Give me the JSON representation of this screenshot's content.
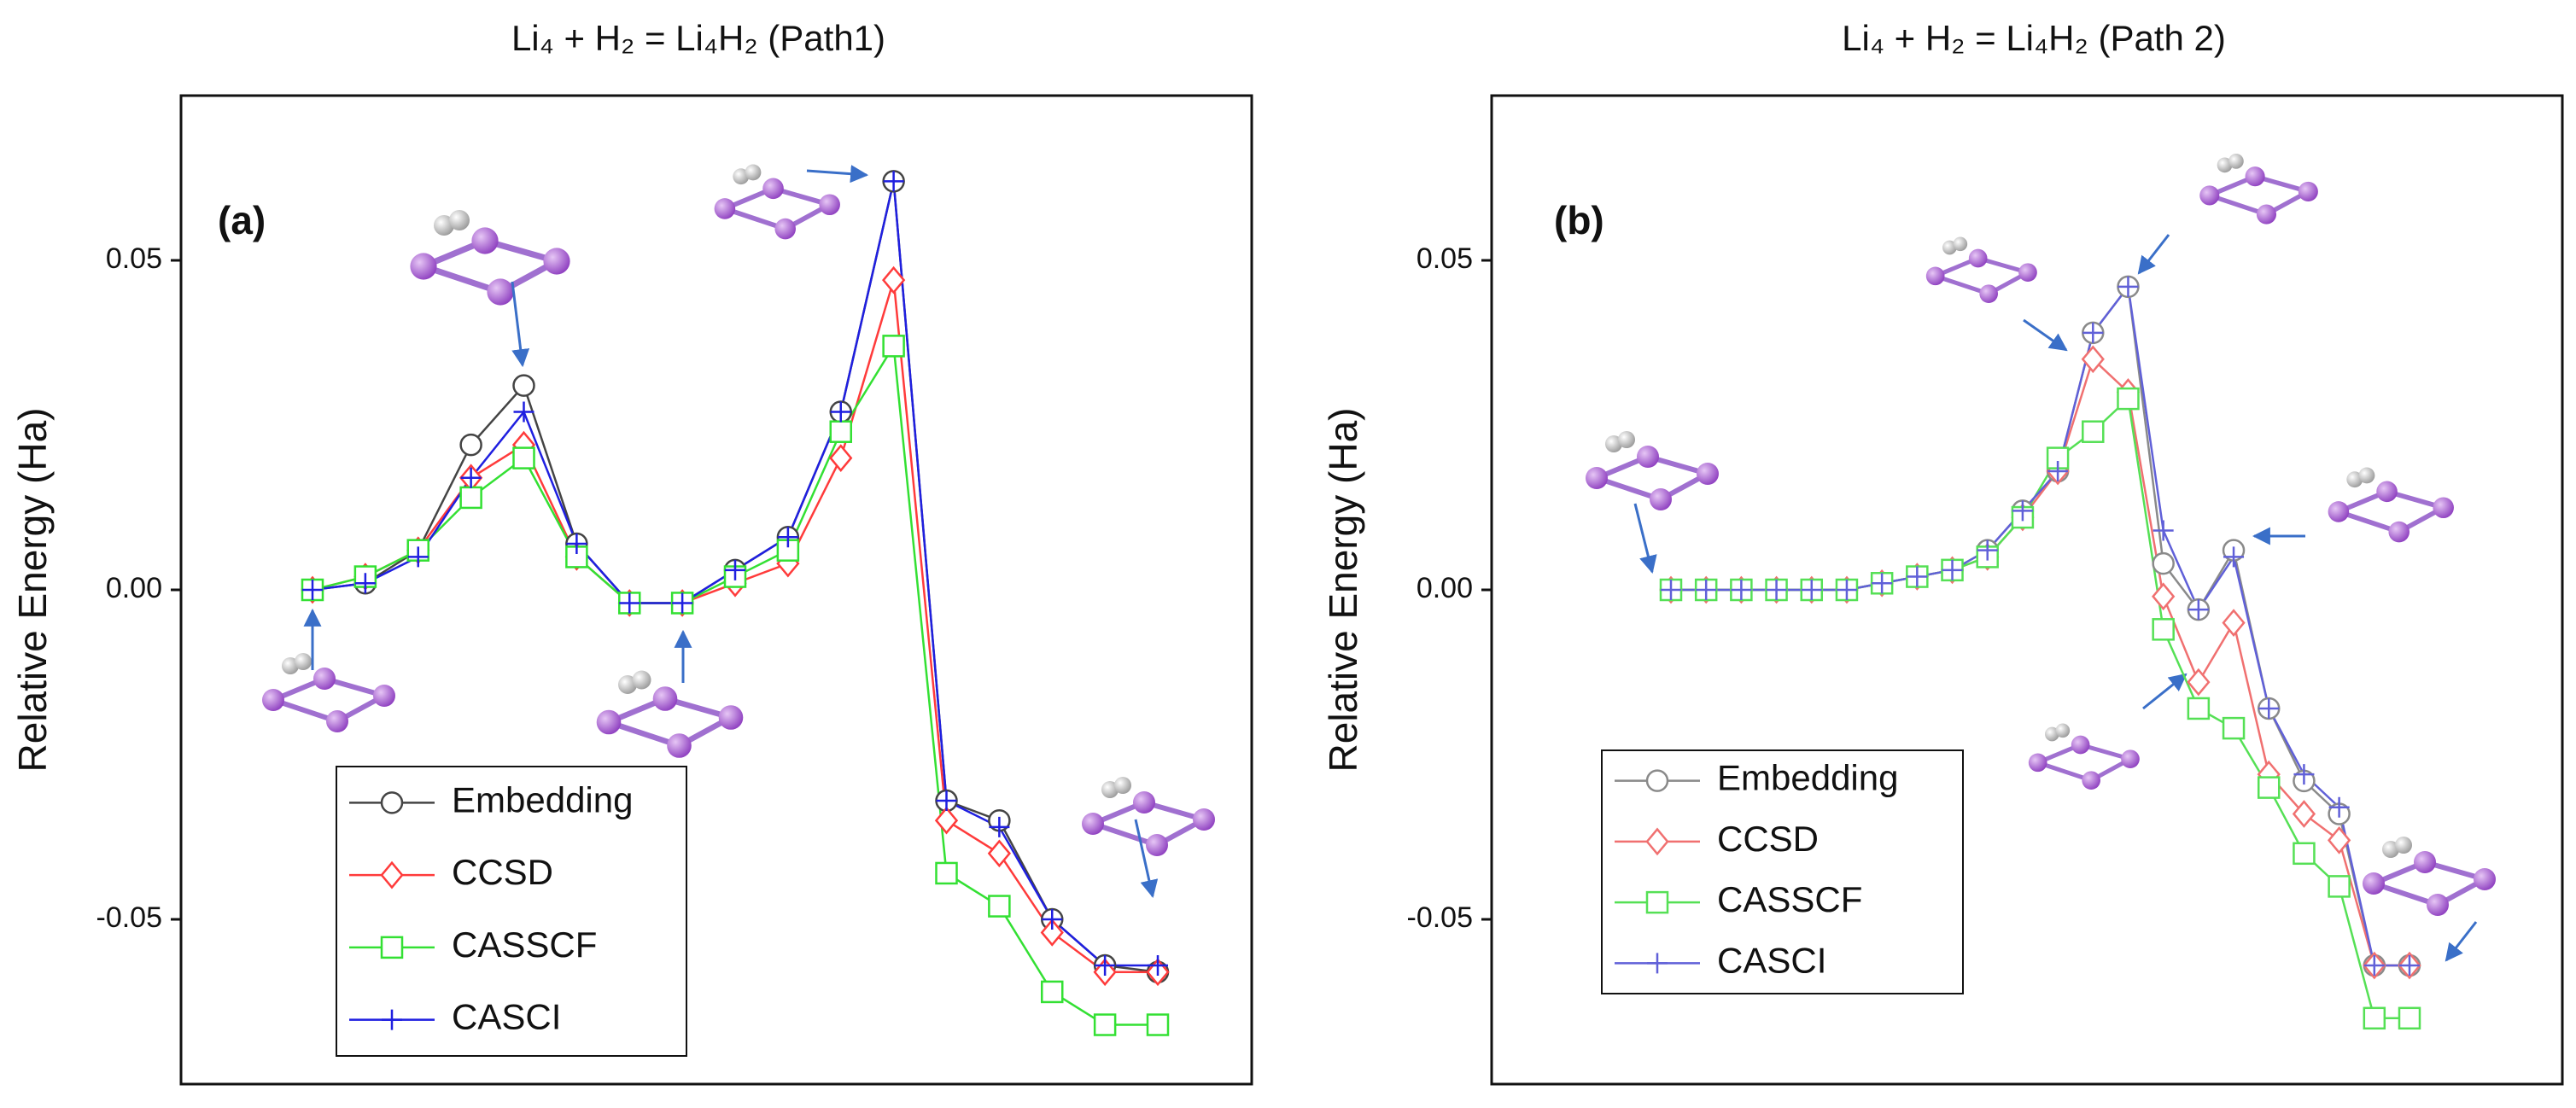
{
  "chart_data": [
    {
      "type": "line",
      "title": "Li₄ + H₂ = Li₄H₂  (Path1)",
      "annotation": "(a)",
      "ylabel": "Relative Energy (Ha)",
      "categories": [
        null,
        null,
        null,
        null,
        null,
        null,
        null,
        null,
        null,
        null,
        null,
        null,
        null,
        null,
        null,
        null,
        null
      ],
      "ylim": [
        -0.075,
        0.075
      ],
      "yticks": [
        {
          "value": -0.05,
          "label": "-0.05"
        },
        {
          "value": 0,
          "label": "0.00"
        },
        {
          "value": 0.05,
          "label": "0.05"
        }
      ],
      "legend": "lower left",
      "series": [
        {
          "name": "Embedding",
          "color": "#444444",
          "marker": "circle",
          "values": [
            0,
            0.001,
            0.006,
            0.022,
            0.031,
            0.007,
            -0.002,
            -0.002,
            0.003,
            0.008,
            0.027,
            0.062,
            -0.032,
            -0.035,
            -0.05,
            -0.057,
            -0.058
          ]
        },
        {
          "name": "CCSD",
          "color": "#ff3b3b",
          "marker": "diamond",
          "values": [
            0,
            0.002,
            0.006,
            0.017,
            0.022,
            0.005,
            -0.002,
            -0.002,
            0.001,
            0.004,
            0.02,
            0.047,
            -0.035,
            -0.04,
            -0.052,
            -0.058,
            -0.058
          ]
        },
        {
          "name": "CASSCF",
          "color": "#33e033",
          "marker": "square",
          "values": [
            0,
            0.002,
            0.006,
            0.014,
            0.02,
            0.005,
            -0.002,
            -0.002,
            0.002,
            0.006,
            0.024,
            0.037,
            -0.043,
            -0.048,
            -0.061,
            -0.066,
            -0.066
          ]
        },
        {
          "name": "CASCI",
          "color": "#1f1fe0",
          "marker": "plus",
          "values": [
            0,
            0.001,
            0.005,
            0.017,
            0.027,
            0.007,
            -0.002,
            -0.002,
            0.003,
            0.008,
            0.027,
            0.062,
            -0.032,
            -0.036,
            -0.05,
            -0.057,
            -0.057
          ]
        }
      ]
    },
    {
      "type": "line",
      "title": "Li₄ + H₂ = Li₄H₂  (Path 2)",
      "annotation": "(b)",
      "ylabel": "Relative Energy (Ha)",
      "categories": [
        null,
        null,
        null,
        null,
        null,
        null,
        null,
        null,
        null,
        null,
        null,
        null,
        null,
        null,
        null,
        null,
        null,
        null,
        null,
        null,
        null,
        null
      ],
      "ylim": [
        -0.075,
        0.075
      ],
      "yticks": [
        {
          "value": -0.05,
          "label": "-0.05"
        },
        {
          "value": 0,
          "label": "0.00"
        },
        {
          "value": 0.05,
          "label": "0.05"
        }
      ],
      "legend": "lower left",
      "series": [
        {
          "name": "Embedding",
          "color": "#8a8a8a",
          "marker": "circle",
          "values": [
            0,
            0,
            0,
            0,
            0,
            0,
            0.001,
            0.002,
            0.003,
            0.006,
            0.012,
            0.018,
            0.039,
            0.046,
            0.004,
            -0.003,
            0.006,
            -0.018,
            -0.029,
            -0.034,
            -0.057,
            -0.057
          ]
        },
        {
          "name": "CCSD",
          "color": "#f07070",
          "marker": "diamond",
          "values": [
            0,
            0,
            0,
            0,
            0,
            0,
            0.001,
            0.002,
            0.003,
            0.005,
            0.011,
            0.018,
            0.035,
            0.03,
            -0.001,
            -0.014,
            -0.005,
            -0.028,
            -0.034,
            -0.038,
            -0.057,
            -0.057
          ]
        },
        {
          "name": "CASSCF",
          "color": "#55e055",
          "marker": "square",
          "values": [
            0,
            0,
            0,
            0,
            0,
            0,
            0.001,
            0.002,
            0.003,
            0.005,
            0.011,
            0.02,
            0.024,
            0.029,
            -0.006,
            -0.018,
            -0.021,
            -0.03,
            -0.04,
            -0.045,
            -0.065,
            -0.065
          ]
        },
        {
          "name": "CASCI",
          "color": "#6060d8",
          "marker": "plus",
          "values": [
            0,
            0,
            0,
            0,
            0,
            0,
            0.001,
            0.002,
            0.003,
            0.006,
            0.012,
            0.018,
            0.039,
            0.046,
            0.009,
            -0.003,
            0.005,
            -0.018,
            -0.028,
            -0.033,
            -0.057,
            -0.057
          ]
        }
      ]
    }
  ]
}
